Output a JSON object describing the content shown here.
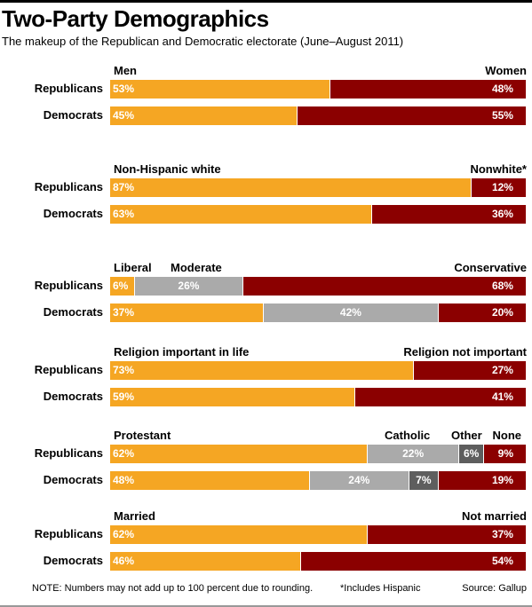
{
  "title": "Two-Party Demographics",
  "subtitle": "The makeup of the Republican and Democratic electorate (June–August 2011)",
  "footer": {
    "note": "NOTE: Numbers may not add up to 100 percent due to rounding.",
    "asterisk": "*Includes Hispanic",
    "source": "Source: Gallup"
  },
  "colors": {
    "orange": "#F5A623",
    "gray": "#AAAAAA",
    "darkgray": "#5E5E5E",
    "darkred": "#8B0000"
  },
  "chart_data": [
    {
      "type": "bar",
      "stacked": true,
      "orientation": "horizontal",
      "categories": [
        "Republicans",
        "Democrats"
      ],
      "series": [
        {
          "name": "Men",
          "values": [
            53,
            45
          ],
          "color": "#F5A623",
          "label_align": "left"
        },
        {
          "name": "Women",
          "values": [
            48,
            55
          ],
          "color": "#8B0000",
          "label_align": "right"
        }
      ]
    },
    {
      "type": "bar",
      "stacked": true,
      "orientation": "horizontal",
      "categories": [
        "Republicans",
        "Democrats"
      ],
      "series": [
        {
          "name": "Non-Hispanic white",
          "values": [
            87,
            63
          ],
          "color": "#F5A623",
          "label_align": "left"
        },
        {
          "name": "Nonwhite*",
          "values": [
            12,
            36
          ],
          "color": "#8B0000",
          "label_align": "right"
        }
      ]
    },
    {
      "type": "bar",
      "stacked": true,
      "orientation": "horizontal",
      "categories": [
        "Republicans",
        "Democrats"
      ],
      "series": [
        {
          "name": "Liberal",
          "values": [
            6,
            37
          ],
          "color": "#F5A623",
          "label_align": "left"
        },
        {
          "name": "Moderate",
          "values": [
            26,
            42
          ],
          "color": "#AAAAAA",
          "label_align": "center"
        },
        {
          "name": "Conservative",
          "values": [
            68,
            20
          ],
          "color": "#8B0000",
          "label_align": "right"
        }
      ]
    },
    {
      "type": "bar",
      "stacked": true,
      "orientation": "horizontal",
      "categories": [
        "Republicans",
        "Democrats"
      ],
      "series": [
        {
          "name": "Religion important in life",
          "values": [
            73,
            59
          ],
          "color": "#F5A623",
          "label_align": "left"
        },
        {
          "name": "Religion not important",
          "values": [
            27,
            41
          ],
          "color": "#8B0000",
          "label_align": "right"
        }
      ]
    },
    {
      "type": "bar",
      "stacked": true,
      "orientation": "horizontal",
      "categories": [
        "Republicans",
        "Democrats"
      ],
      "series": [
        {
          "name": "Protestant",
          "values": [
            62,
            48
          ],
          "color": "#F5A623",
          "label_align": "left"
        },
        {
          "name": "Catholic",
          "values": [
            22,
            24
          ],
          "color": "#AAAAAA",
          "label_align": "center"
        },
        {
          "name": "Other",
          "values": [
            6,
            7
          ],
          "color": "#5E5E5E",
          "label_align": "center"
        },
        {
          "name": "None",
          "values": [
            9,
            19
          ],
          "color": "#8B0000",
          "label_align": "right"
        }
      ]
    },
    {
      "type": "bar",
      "stacked": true,
      "orientation": "horizontal",
      "categories": [
        "Republicans",
        "Democrats"
      ],
      "series": [
        {
          "name": "Married",
          "values": [
            62,
            46
          ],
          "color": "#F5A623",
          "label_align": "left"
        },
        {
          "name": "Not married",
          "values": [
            37,
            54
          ],
          "color": "#8B0000",
          "label_align": "right"
        }
      ]
    }
  ]
}
